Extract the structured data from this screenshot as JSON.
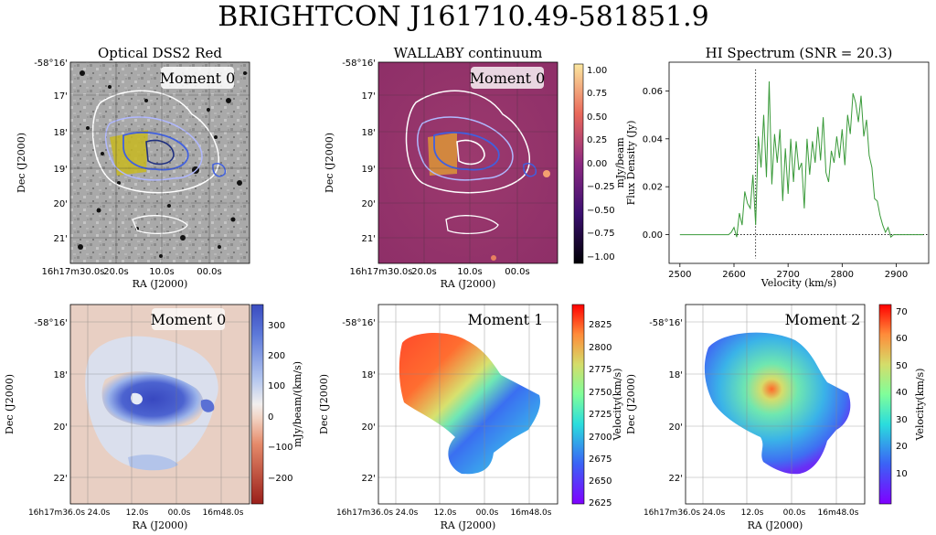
{
  "title": "BRIGHTCON J161710.49-581851.9",
  "panels": {
    "optical": {
      "title": "Optical DSS2 Red",
      "badge": "Moment 0",
      "xlabel": "RA (J2000)",
      "ylabel": "Dec (J2000)",
      "yticks": [
        "-58°16'",
        "17'",
        "18'",
        "19'",
        "20'",
        "21'"
      ],
      "xticks": [
        "16h17m30.0s",
        "20.0s",
        "10.0s",
        "00.0s"
      ]
    },
    "continuum": {
      "title": "WALLABY continuum",
      "badge": "Moment 0",
      "xlabel": "RA (J2000)",
      "ylabel": "Dec (J2000)",
      "yticks": [
        "-58°16'",
        "17'",
        "18'",
        "19'",
        "20'",
        "21'"
      ],
      "xticks": [
        "16h17m30.0s",
        "20.0s",
        "10.0s",
        "00.0s"
      ],
      "colorbar": {
        "label": "mJy/beam",
        "ticks": [
          "1.00",
          "0.75",
          "0.50",
          "0.25",
          "0.00",
          "−0.25",
          "−0.50",
          "−0.75",
          "−1.00"
        ]
      }
    },
    "mom0": {
      "badge": "Moment 0",
      "xlabel": "RA (J2000)",
      "ylabel": "Dec (J2000)",
      "yticks": [
        "-58°16'",
        "18'",
        "20'",
        "22'"
      ],
      "xticks": [
        "16h17m36.0s",
        "24.0s",
        "12.0s",
        "00.0s",
        "16m48.0s"
      ],
      "colorbar": {
        "label": "mJy/beam/(km/s)",
        "ticks": [
          "300",
          "200",
          "100",
          "0",
          "−100",
          "−200"
        ]
      }
    },
    "mom1": {
      "badge": "Moment 1",
      "xlabel": "RA (J2000)",
      "ylabel": "Dec (J2000)",
      "yticks": [
        "-58°16'",
        "18'",
        "20'",
        "22'"
      ],
      "xticks": [
        "16h17m36.0s",
        "24.0s",
        "12.0s",
        "00.0s",
        "16m48.0s"
      ],
      "colorbar": {
        "label": "Velocity(km/s)",
        "ticks": [
          "2825",
          "2800",
          "2775",
          "2750",
          "2725",
          "2700",
          "2675",
          "2650",
          "2625"
        ]
      }
    },
    "mom2": {
      "badge": "Moment 2",
      "xlabel": "RA (J2000)",
      "ylabel": "Dec (J2000)",
      "yticks": [
        "-58°16'",
        "18'",
        "20'",
        "22'"
      ],
      "xticks": [
        "16h17m36.0s",
        "24.0s",
        "12.0s",
        "00.0s",
        "16m48.0s"
      ],
      "colorbar": {
        "label": "Velocity(km/s)",
        "ticks": [
          "70",
          "60",
          "50",
          "40",
          "30",
          "20",
          "10"
        ]
      }
    }
  },
  "chart_data": {
    "type": "line",
    "title": "HI Spectrum (SNR = 20.3)",
    "xlabel": "Velocity (km/s)",
    "ylabel": "Flux Density (Jy)",
    "xlim": [
      2480,
      2960
    ],
    "ylim": [
      -0.012,
      0.072
    ],
    "xticks": [
      2500,
      2600,
      2700,
      2800,
      2900
    ],
    "yticks": [
      0.0,
      0.02,
      0.04,
      0.06
    ],
    "systemic_velocity": 2640,
    "series": [
      {
        "color": "#3a9a3a",
        "x": [
          2500,
          2520,
          2540,
          2560,
          2580,
          2590,
          2595,
          2600,
          2605,
          2610,
          2615,
          2620,
          2625,
          2630,
          2635,
          2640,
          2645,
          2650,
          2655,
          2660,
          2665,
          2670,
          2675,
          2680,
          2685,
          2690,
          2695,
          2700,
          2705,
          2710,
          2715,
          2720,
          2725,
          2730,
          2735,
          2740,
          2745,
          2750,
          2755,
          2760,
          2765,
          2770,
          2775,
          2780,
          2785,
          2790,
          2795,
          2800,
          2805,
          2810,
          2815,
          2820,
          2825,
          2830,
          2835,
          2840,
          2845,
          2850,
          2855,
          2860,
          2865,
          2870,
          2875,
          2880,
          2885,
          2890,
          2895,
          2900,
          2920,
          2940,
          2950
        ],
        "y": [
          0.0,
          0.0,
          0.0,
          0.0,
          0.0,
          0.0,
          0.001,
          0.003,
          -0.001,
          0.009,
          0.004,
          0.018,
          0.013,
          0.011,
          0.025,
          0.004,
          0.041,
          0.028,
          0.05,
          0.024,
          0.064,
          0.021,
          0.042,
          0.03,
          0.044,
          0.014,
          0.036,
          0.017,
          0.04,
          0.022,
          0.039,
          0.027,
          0.03,
          0.011,
          0.04,
          0.025,
          0.039,
          0.03,
          0.045,
          0.031,
          0.049,
          0.026,
          0.022,
          0.035,
          0.03,
          0.041,
          0.032,
          0.044,
          0.029,
          0.05,
          0.042,
          0.059,
          0.055,
          0.047,
          0.058,
          0.041,
          0.048,
          0.033,
          0.028,
          0.015,
          0.014,
          0.008,
          0.004,
          0.001,
          0.003,
          -0.001,
          0.0,
          0.0,
          0.0,
          0.0,
          0.0
        ]
      }
    ]
  }
}
